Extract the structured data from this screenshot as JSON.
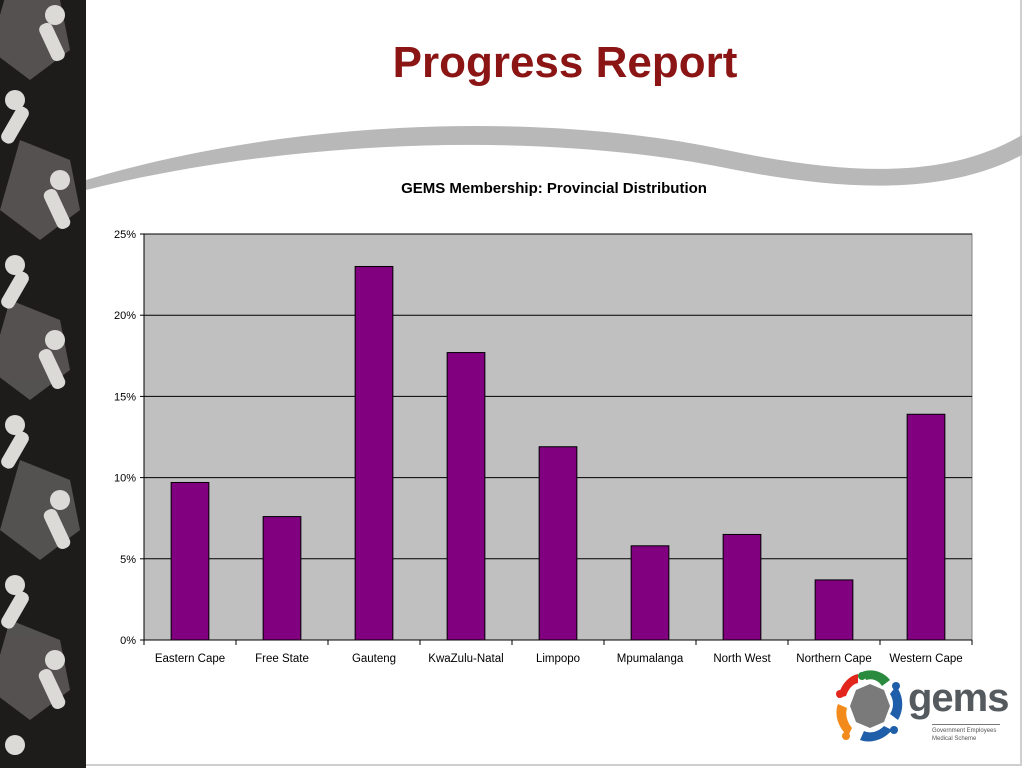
{
  "slide": {
    "title": "Progress Report",
    "title_color": "#8b1414"
  },
  "logo": {
    "word": "gems",
    "sub_line1": "Government Employees",
    "sub_line2": "Medical Scheme",
    "colors": [
      "#e2261d",
      "#f28a1c",
      "#2a8a3e",
      "#1f5ea8",
      "#777777"
    ]
  },
  "chart_data": {
    "type": "bar",
    "title": "GEMS Membership: Provincial Distribution",
    "xlabel": "",
    "ylabel": "",
    "categories": [
      "Eastern Cape",
      "Free State",
      "Gauteng",
      "KwaZulu-Natal",
      "Limpopo",
      "Mpumalanga",
      "North West",
      "Northern Cape",
      "Western Cape"
    ],
    "values": [
      9.7,
      7.6,
      23.0,
      17.7,
      11.9,
      5.8,
      6.5,
      3.7,
      13.9
    ],
    "value_unit": "%",
    "ylim": [
      0,
      25
    ],
    "yticks": [
      "0%",
      "5%",
      "10%",
      "15%",
      "20%",
      "25%"
    ],
    "bar_color": "#800080",
    "plot_bg": "#c0c0c0",
    "grid": true,
    "legend": "none"
  }
}
